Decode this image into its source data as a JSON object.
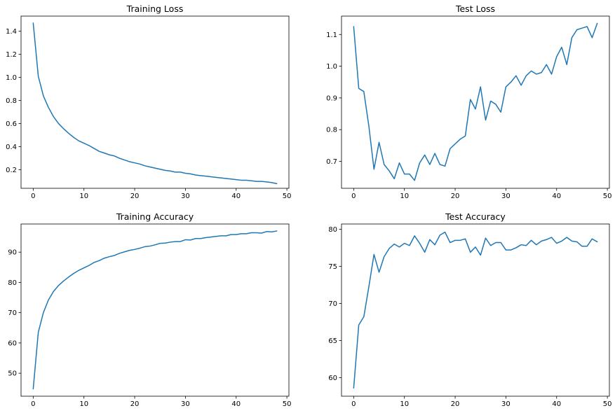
{
  "chart_data": [
    {
      "type": "line",
      "title": "Training Loss",
      "xlim": [
        -2.4,
        50.4
      ],
      "ylim": [
        0.04,
        1.53
      ],
      "xticks": [
        0,
        10,
        20,
        30,
        40,
        50
      ],
      "yticks": [
        0.2,
        0.4,
        0.6,
        0.8,
        1.0,
        1.2,
        1.4
      ],
      "ytick_labels": [
        "0.2",
        "0.4",
        "0.6",
        "0.8",
        "1.0",
        "1.2",
        "1.4"
      ],
      "color": "#1f77b4",
      "series": [
        {
          "x": [
            0,
            1,
            2,
            3,
            4,
            5,
            6,
            7,
            8,
            9,
            10,
            11,
            12,
            13,
            14,
            15,
            16,
            17,
            18,
            19,
            20,
            21,
            22,
            23,
            24,
            25,
            26,
            27,
            28,
            29,
            30,
            31,
            32,
            33,
            34,
            35,
            36,
            37,
            38,
            39,
            40,
            41,
            42,
            43,
            44,
            45,
            46,
            47,
            48
          ],
          "values": [
            1.47,
            1.01,
            0.84,
            0.74,
            0.66,
            0.6,
            0.555,
            0.515,
            0.48,
            0.45,
            0.43,
            0.41,
            0.385,
            0.36,
            0.345,
            0.33,
            0.32,
            0.3,
            0.285,
            0.27,
            0.26,
            0.25,
            0.235,
            0.225,
            0.215,
            0.205,
            0.195,
            0.19,
            0.18,
            0.18,
            0.17,
            0.165,
            0.155,
            0.15,
            0.145,
            0.14,
            0.135,
            0.13,
            0.125,
            0.12,
            0.115,
            0.11,
            0.11,
            0.105,
            0.1,
            0.1,
            0.095,
            0.09,
            0.08
          ]
        }
      ]
    },
    {
      "type": "line",
      "title": "Test Loss",
      "xlim": [
        -2.4,
        50.4
      ],
      "ylim": [
        0.615,
        1.158
      ],
      "xticks": [
        0,
        10,
        20,
        30,
        40,
        50
      ],
      "yticks": [
        0.7,
        0.8,
        0.9,
        1.0,
        1.1
      ],
      "ytick_labels": [
        "0.7",
        "0.8",
        "0.9",
        "1.0",
        "1.1"
      ],
      "color": "#1f77b4",
      "series": [
        {
          "x": [
            0,
            1,
            2,
            3,
            4,
            5,
            6,
            7,
            8,
            9,
            10,
            11,
            12,
            13,
            14,
            15,
            16,
            17,
            18,
            19,
            20,
            21,
            22,
            23,
            24,
            25,
            26,
            27,
            28,
            29,
            30,
            31,
            32,
            33,
            34,
            35,
            36,
            37,
            38,
            39,
            40,
            41,
            42,
            43,
            44,
            45,
            46,
            47,
            48
          ],
          "values": [
            1.125,
            0.93,
            0.92,
            0.81,
            0.675,
            0.76,
            0.69,
            0.67,
            0.645,
            0.695,
            0.66,
            0.66,
            0.64,
            0.695,
            0.72,
            0.69,
            0.725,
            0.69,
            0.685,
            0.74,
            0.755,
            0.77,
            0.78,
            0.895,
            0.865,
            0.935,
            0.83,
            0.89,
            0.88,
            0.855,
            0.935,
            0.95,
            0.97,
            0.94,
            0.97,
            0.985,
            0.975,
            0.98,
            1.005,
            0.975,
            1.03,
            1.06,
            1.005,
            1.09,
            1.115,
            1.12,
            1.125,
            1.09,
            1.135
          ]
        }
      ]
    },
    {
      "type": "line",
      "title": "Training Accuracy",
      "xlim": [
        -2.4,
        50.4
      ],
      "ylim": [
        42.4,
        99.3
      ],
      "xticks": [
        0,
        10,
        20,
        30,
        40,
        50
      ],
      "yticks": [
        50,
        60,
        70,
        80,
        90
      ],
      "ytick_labels": [
        "50",
        "60",
        "70",
        "80",
        "90"
      ],
      "color": "#1f77b4",
      "series": [
        {
          "x": [
            0,
            1,
            2,
            3,
            4,
            5,
            6,
            7,
            8,
            9,
            10,
            11,
            12,
            13,
            14,
            15,
            16,
            17,
            18,
            19,
            20,
            21,
            22,
            23,
            24,
            25,
            26,
            27,
            28,
            29,
            30,
            31,
            32,
            33,
            34,
            35,
            36,
            37,
            38,
            39,
            40,
            41,
            42,
            43,
            44,
            45,
            46,
            47,
            48
          ],
          "values": [
            44.8,
            63.5,
            70.0,
            74.2,
            77.0,
            79.0,
            80.5,
            81.8,
            83.0,
            84.0,
            84.8,
            85.6,
            86.6,
            87.2,
            88.0,
            88.5,
            88.9,
            89.6,
            90.1,
            90.6,
            90.9,
            91.3,
            91.8,
            92.0,
            92.4,
            92.9,
            93.0,
            93.3,
            93.5,
            93.5,
            94.1,
            94.0,
            94.5,
            94.5,
            94.8,
            95.0,
            95.2,
            95.4,
            95.4,
            95.8,
            95.8,
            96.1,
            96.1,
            96.4,
            96.4,
            96.3,
            96.8,
            96.7,
            97.0
          ]
        }
      ]
    },
    {
      "type": "line",
      "title": "Test Accuracy",
      "xlim": [
        -2.4,
        50.4
      ],
      "ylim": [
        57.5,
        80.7
      ],
      "xticks": [
        0,
        10,
        20,
        30,
        40,
        50
      ],
      "yticks": [
        60,
        65,
        70,
        75,
        80
      ],
      "ytick_labels": [
        "60",
        "65",
        "70",
        "75",
        "80"
      ],
      "color": "#1f77b4",
      "series": [
        {
          "x": [
            0,
            1,
            2,
            3,
            4,
            5,
            6,
            7,
            8,
            9,
            10,
            11,
            12,
            13,
            14,
            15,
            16,
            17,
            18,
            19,
            20,
            21,
            22,
            23,
            24,
            25,
            26,
            27,
            28,
            29,
            30,
            31,
            32,
            33,
            34,
            35,
            36,
            37,
            38,
            39,
            40,
            41,
            42,
            43,
            44,
            45,
            46,
            47,
            48
          ],
          "values": [
            58.6,
            67.1,
            68.2,
            72.3,
            76.6,
            74.2,
            76.3,
            77.4,
            78.0,
            77.6,
            78.1,
            77.8,
            79.1,
            78.1,
            76.9,
            78.6,
            77.9,
            79.2,
            79.6,
            78.2,
            78.5,
            78.5,
            78.7,
            76.9,
            77.6,
            76.5,
            78.8,
            77.8,
            78.2,
            78.2,
            77.2,
            77.2,
            77.5,
            77.9,
            77.8,
            78.5,
            77.9,
            78.4,
            78.6,
            78.9,
            78.1,
            78.4,
            78.9,
            78.4,
            78.3,
            77.7,
            77.7,
            78.7,
            78.3
          ]
        }
      ]
    }
  ]
}
